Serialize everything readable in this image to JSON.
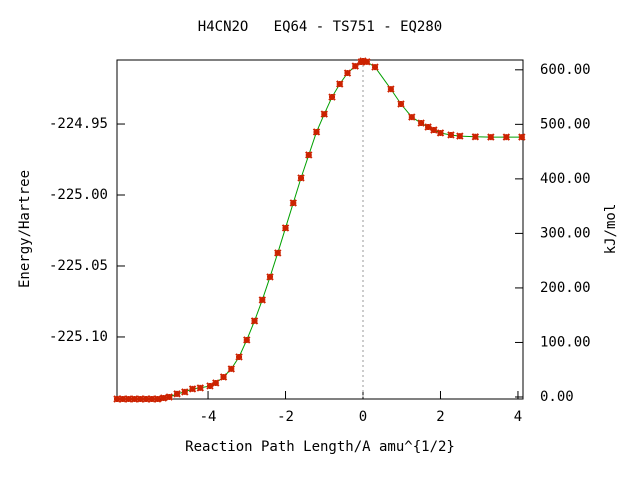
{
  "chart_data": {
    "type": "line",
    "title": "H4CN2O   EQ64 - TS751 - EQ280",
    "x_label": "Reaction Path Length/A amu^{1/2}",
    "y_label": "Energy/Hartree",
    "y2_label": "kJ/mol",
    "x": [
      -6.35,
      -6.2,
      -6.05,
      -5.9,
      -5.75,
      -5.6,
      -5.45,
      -5.3,
      -5.15,
      -5.0,
      -4.8,
      -4.6,
      -4.4,
      -4.2,
      -3.95,
      -3.8,
      -3.6,
      -3.4,
      -3.2,
      -3.0,
      -2.8,
      -2.6,
      -2.4,
      -2.2,
      -2.0,
      -1.8,
      -1.6,
      -1.4,
      -1.2,
      -1.0,
      -0.8,
      -0.6,
      -0.4,
      -0.2,
      -0.05,
      0,
      0.1,
      0.31,
      0.72,
      0.98,
      1.26,
      1.5,
      1.68,
      1.83,
      2.0,
      2.27,
      2.5,
      2.9,
      3.3,
      3.7,
      4.1
    ],
    "series": [
      {
        "color": "#cc2200",
        "line_color": "#00a000",
        "values": [
          -225.1437,
          -225.1437,
          -225.1437,
          -225.1437,
          -225.1437,
          -225.1437,
          -225.1437,
          -225.1437,
          -225.143,
          -225.1423,
          -225.1401,
          -225.1387,
          -225.1366,
          -225.1359,
          -225.1345,
          -225.1324,
          -225.1282,
          -225.1225,
          -225.1141,
          -225.1021,
          -225.0887,
          -225.0739,
          -225.0577,
          -225.0408,
          -225.0232,
          -225.0056,
          -224.988,
          -224.9718,
          -224.9556,
          -224.943,
          -224.931,
          -224.9218,
          -224.9141,
          -224.9092,
          -224.9063,
          -224.9056,
          -224.9062,
          -224.9099,
          -224.9254,
          -224.9359,
          -224.9451,
          -224.9493,
          -224.9521,
          -224.9542,
          -224.9563,
          -224.9577,
          -224.9585,
          -224.959,
          -224.9592,
          -224.9592,
          -224.9592
        ]
      }
    ],
    "xlim": [
      -6.35,
      4.13
    ],
    "xticks": [
      -4,
      -2,
      0,
      2,
      4
    ],
    "ylim": [
      -225.1437,
      -224.9049
    ],
    "yticks": [
      -224.95,
      {
        "value": -225.0,
        "label": "-225.00"
      },
      -225.05,
      {
        "value": -225.1,
        "label": "-225.10"
      }
    ],
    "y2lim": [
      -3.7,
      618
    ],
    "y2ticks": [
      {
        "value": 0,
        "label": "0.00"
      },
      {
        "value": 100,
        "label": "100.00"
      },
      {
        "value": 200,
        "label": "200.00"
      },
      {
        "value": 300,
        "label": "300.00"
      },
      {
        "value": 400,
        "label": "400.00"
      },
      {
        "value": 500,
        "label": "500.00"
      },
      {
        "value": 600,
        "label": "600.00"
      }
    ]
  }
}
